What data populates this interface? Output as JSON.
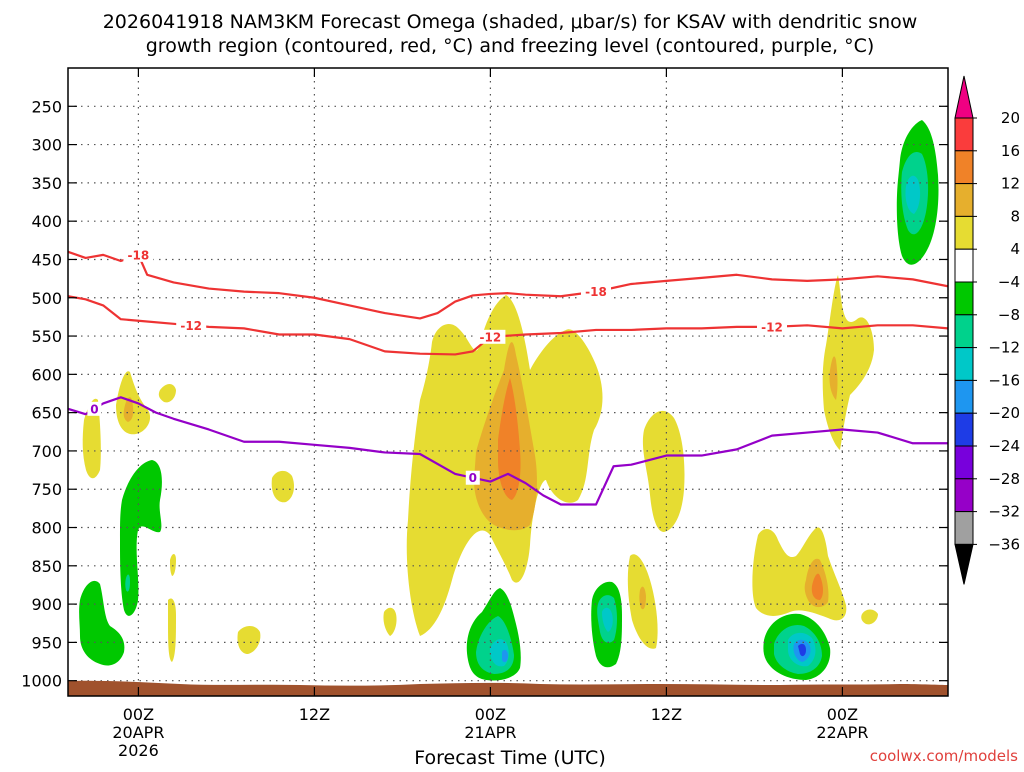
{
  "chart_data": {
    "type": "heatmap",
    "title_line1": "2026041918 NAM3KM Forecast Omega (shaded, μbar/s) for KSAV with dendritic snow",
    "title_line2": "growth region (contoured, red, °C) and freezing level (contoured, purple, °C)",
    "xlabel": "Forecast Time (UTC)",
    "ylabel": "Pressure (hPa)",
    "credit": "coolwx.com/models",
    "x_range_hours": [
      -4,
      46
    ],
    "y_range_hPa": [
      200,
      1020
    ],
    "y_ticks": [
      {
        "p": 250,
        "label": "250"
      },
      {
        "p": 300,
        "label": "300"
      },
      {
        "p": 350,
        "label": "350"
      },
      {
        "p": 400,
        "label": "400"
      },
      {
        "p": 450,
        "label": "450"
      },
      {
        "p": 500,
        "label": "500"
      },
      {
        "p": 550,
        "label": "550"
      },
      {
        "p": 600,
        "label": "600"
      },
      {
        "p": 650,
        "label": "650"
      },
      {
        "p": 700,
        "label": "700"
      },
      {
        "p": 750,
        "label": "750"
      },
      {
        "p": 800,
        "label": "800"
      },
      {
        "p": 850,
        "label": "850"
      },
      {
        "p": 900,
        "label": "900"
      },
      {
        "p": 950,
        "label": "950"
      },
      {
        "p": 1000,
        "label": "1000"
      }
    ],
    "x_ticks": [
      {
        "hour": 0,
        "lines": [
          "00Z",
          "20APR",
          "2026"
        ]
      },
      {
        "hour": 10,
        "lines": [
          "12Z"
        ]
      },
      {
        "hour": 20,
        "lines": [
          "00Z",
          "21APR"
        ]
      },
      {
        "hour": 30,
        "lines": [
          "12Z"
        ]
      },
      {
        "hour": 40,
        "lines": [
          "00Z",
          "22APR"
        ]
      }
    ],
    "colorbar": {
      "levels": [
        -36,
        -32,
        -28,
        -24,
        -20,
        -16,
        -12,
        -8,
        -4,
        4,
        8,
        12,
        16,
        20
      ],
      "colors": [
        "#a0a0a0",
        "#9600c8",
        "#7800dc",
        "#1e3ce6",
        "#1e96f0",
        "#00c8c8",
        "#00d28c",
        "#00c800",
        "#ffffff",
        "#e6dc32",
        "#e6af2d",
        "#f08228",
        "#fa3c3c",
        "#f00082"
      ],
      "under_color": "#000000",
      "over_color": "#f00082"
    },
    "series": [
      {
        "name": "-18 °C isotherm",
        "color": "#ee3333",
        "label": "-18",
        "x": [
          -4,
          -3,
          -2,
          -1,
          0,
          0.5,
          2,
          4,
          6,
          8,
          10,
          12,
          14,
          16,
          17,
          18,
          19,
          20,
          21,
          22,
          24,
          26,
          28,
          30,
          32,
          34,
          36,
          38,
          40,
          42,
          44,
          46
        ],
        "p": [
          440,
          448,
          444,
          452,
          444,
          470,
          480,
          488,
          492,
          494,
          500,
          510,
          520,
          527,
          520,
          505,
          497,
          495,
          494,
          496,
          498,
          492,
          482,
          478,
          474,
          470,
          476,
          478,
          476,
          472,
          476,
          485
        ],
        "labels_at_hours": [
          0,
          26
        ]
      },
      {
        "name": "-12 °C isotherm",
        "color": "#ee3333",
        "label": "-12",
        "x": [
          -4,
          -3,
          -2,
          -1,
          0,
          2,
          4,
          6,
          8,
          10,
          12,
          14,
          16,
          18,
          19,
          20,
          22,
          24,
          26,
          28,
          30,
          32,
          34,
          36,
          38,
          40,
          42,
          44,
          46
        ],
        "p": [
          498,
          502,
          510,
          528,
          530,
          534,
          538,
          540,
          548,
          548,
          554,
          570,
          573,
          574,
          570,
          551,
          548,
          546,
          542,
          542,
          540,
          540,
          538,
          538,
          536,
          540,
          536,
          536,
          540
        ],
        "labels_at_hours": [
          3,
          20,
          36
        ]
      },
      {
        "name": "0 °C isotherm (freezing level)",
        "color": "#9400c8",
        "label": "0",
        "x": [
          -4,
          -3,
          -2,
          -1,
          0,
          1,
          2,
          4,
          6,
          8,
          10,
          12,
          14,
          16,
          18,
          20,
          21,
          22,
          23,
          24,
          25,
          26,
          27,
          28,
          30,
          32,
          34,
          36,
          38,
          40,
          42,
          44,
          46
        ],
        "p": [
          645,
          652,
          638,
          630,
          638,
          650,
          658,
          672,
          688,
          688,
          692,
          696,
          702,
          704,
          730,
          740,
          730,
          742,
          758,
          770,
          770,
          770,
          720,
          718,
          706,
          706,
          698,
          680,
          676,
          672,
          676,
          690,
          690
        ],
        "labels_at_hours": [
          -2.5,
          19
        ]
      }
    ],
    "omega_features": [
      {
        "sign": "positive",
        "peak": 14,
        "x_hours": [
          17,
          25
        ],
        "p_range": [
          300,
          800
        ]
      },
      {
        "sign": "positive",
        "peak": 6,
        "x_hours": [
          -1.5,
          0
        ],
        "p_range": [
          390,
          545
        ]
      },
      {
        "sign": "positive",
        "peak": 8,
        "x_hours": [
          38.5,
          41
        ],
        "p_range": [
          340,
          600
        ]
      },
      {
        "sign": "positive",
        "peak": 12,
        "x_hours": [
          35.5,
          41
        ],
        "p_range": [
          720,
          885
        ]
      },
      {
        "sign": "positive",
        "peak": 6,
        "x_hours": [
          27.5,
          30
        ],
        "p_range": [
          520,
          915
        ]
      },
      {
        "sign": "negative",
        "peak": -12,
        "x_hours": [
          -1.5,
          0.5
        ],
        "p_range": [
          610,
          865
        ]
      },
      {
        "sign": "negative",
        "peak": -12,
        "x_hours": [
          -3.5,
          -2
        ],
        "p_range": [
          780,
          980
        ]
      },
      {
        "sign": "negative",
        "peak": -20,
        "x_hours": [
          18,
          21
        ],
        "p_range": [
          795,
          985
        ]
      },
      {
        "sign": "negative",
        "peak": -16,
        "x_hours": [
          24,
          26
        ],
        "p_range": [
          785,
          960
        ]
      },
      {
        "sign": "negative",
        "peak": -24,
        "x_hours": [
          37,
          41
        ],
        "p_range": [
          865,
          985
        ]
      },
      {
        "sign": "negative",
        "peak": -12,
        "x_hours": [
          42,
          44.5
        ],
        "p_range": [
          220,
          345
        ]
      }
    ],
    "terrain_color": "#a0522d"
  }
}
